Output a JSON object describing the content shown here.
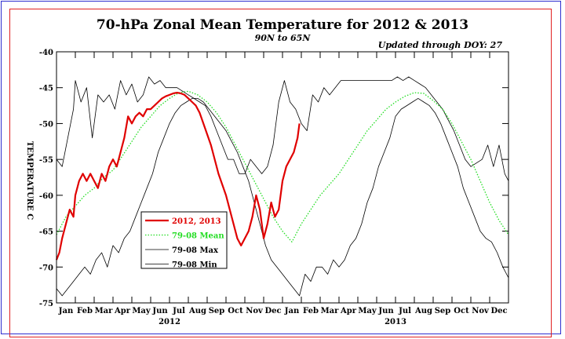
{
  "chart_data": {
    "type": "line",
    "title": "70-hPa Zonal Mean Temperature for 2012 & 2013",
    "subtitle": "90N to 65N",
    "update_note": "Updated through DOY:  27",
    "ylabel": "TEMPERATURE C",
    "ylim": [
      -75,
      -40
    ],
    "yticks": [
      -40,
      -45,
      -50,
      -55,
      -60,
      -65,
      -70,
      -75
    ],
    "xlim": [
      0,
      24
    ],
    "month_labels": [
      "Jan",
      "Feb",
      "Mar",
      "Apr",
      "May",
      "Jun",
      "Jul",
      "Aug",
      "Sep",
      "Oct",
      "Nov",
      "Dec",
      "Jan",
      "Feb",
      "Mar",
      "Apr",
      "May",
      "Jun",
      "Jul",
      "Aug",
      "Sep",
      "Oct",
      "Nov",
      "Dec"
    ],
    "year_labels": [
      {
        "label": "2012",
        "x": 6
      },
      {
        "label": "2013",
        "x": 18
      }
    ],
    "grid": false,
    "legend_position": "lower-left",
    "series": [
      {
        "name": "2012, 2013",
        "color": "#e00000",
        "style": "solid-thick",
        "x": [
          0,
          0.15,
          0.3,
          0.5,
          0.7,
          0.9,
          1.0,
          1.2,
          1.4,
          1.6,
          1.8,
          2.0,
          2.2,
          2.4,
          2.6,
          2.8,
          3.0,
          3.2,
          3.4,
          3.6,
          3.8,
          4.0,
          4.2,
          4.4,
          4.6,
          4.8,
          5.0,
          5.2,
          5.4,
          5.6,
          5.8,
          6.0,
          6.2,
          6.4,
          6.6,
          6.8,
          7.0,
          7.2,
          7.4,
          7.6,
          7.8,
          8.0,
          8.2,
          8.4,
          8.6,
          8.8,
          9.0,
          9.2,
          9.4,
          9.6,
          9.8,
          10.0,
          10.2,
          10.4,
          10.6,
          10.8,
          11.0,
          11.2,
          11.4,
          11.6,
          11.8,
          12.0,
          12.2,
          12.4,
          12.6,
          12.8,
          12.9
        ],
        "y": [
          -69,
          -68,
          -66,
          -64,
          -62,
          -63,
          -60,
          -58,
          -57,
          -58,
          -57,
          -58,
          -59,
          -57,
          -58,
          -56,
          -55,
          -56,
          -54,
          -52,
          -49,
          -50,
          -49,
          -48.5,
          -49,
          -48,
          -48,
          -47.5,
          -47,
          -46.5,
          -46.2,
          -46,
          -45.8,
          -45.7,
          -45.8,
          -46,
          -46.5,
          -47,
          -47.5,
          -48.5,
          -50,
          -51.5,
          -53,
          -55,
          -57,
          -58.5,
          -60,
          -62,
          -64,
          -66,
          -67,
          -66,
          -65,
          -63,
          -60,
          -62,
          -66,
          -64,
          -61,
          -63,
          -62,
          -58,
          -56,
          -55,
          -54,
          -52,
          -50
        ]
      },
      {
        "name": "79-08 Mean",
        "color": "#22dd22",
        "style": "dotted",
        "x": [
          0,
          0.5,
          1,
          1.5,
          2,
          2.5,
          3,
          3.5,
          4,
          4.5,
          5,
          5.5,
          6,
          6.5,
          7,
          7.5,
          8,
          8.5,
          9,
          9.5,
          10,
          10.5,
          11,
          11.5,
          12,
          12.5,
          13,
          13.5,
          14,
          14.5,
          15,
          15.5,
          16,
          16.5,
          17,
          17.5,
          18,
          18.5,
          19,
          19.5,
          20,
          20.5,
          21,
          21.5,
          22,
          22.5,
          23,
          23.5,
          24
        ],
        "y": [
          -65.5,
          -63,
          -61.5,
          -60,
          -59,
          -57.5,
          -56.5,
          -54.5,
          -52.5,
          -50.5,
          -49,
          -47.5,
          -46.5,
          -45.7,
          -45.5,
          -46,
          -47,
          -48.5,
          -50.5,
          -53,
          -55.5,
          -58,
          -60.5,
          -63,
          -65,
          -66.5,
          -64,
          -62,
          -60,
          -58.5,
          -57,
          -55,
          -53,
          -51,
          -49.5,
          -48,
          -47,
          -46.2,
          -45.7,
          -45.8,
          -46.8,
          -48,
          -50,
          -52.5,
          -55,
          -58,
          -61,
          -63.5,
          -65.5
        ]
      },
      {
        "name": "79-08 Max",
        "color": "#000000",
        "style": "thin",
        "x": [
          0,
          0.3,
          0.6,
          0.9,
          1.0,
          1.3,
          1.6,
          1.9,
          2.2,
          2.5,
          2.8,
          3.1,
          3.4,
          3.7,
          4.0,
          4.3,
          4.6,
          4.9,
          5.2,
          5.5,
          5.8,
          6.1,
          6.4,
          6.7,
          7.0,
          7.3,
          7.6,
          7.9,
          8.2,
          8.5,
          8.8,
          9.1,
          9.4,
          9.7,
          10.0,
          10.3,
          10.6,
          10.9,
          11.2,
          11.5,
          11.8,
          12.1,
          12.4,
          12.7,
          13.0,
          13.3,
          13.6,
          13.9,
          14.2,
          14.5,
          14.8,
          15.1,
          15.4,
          15.7,
          16.0,
          16.3,
          16.6,
          16.9,
          17.2,
          17.5,
          17.8,
          18.1,
          18.4,
          18.7,
          19.0,
          19.3,
          19.6,
          19.9,
          20.2,
          20.5,
          20.8,
          21.1,
          21.4,
          21.7,
          22.0,
          22.3,
          22.6,
          22.9,
          23.2,
          23.5,
          23.8,
          24
        ],
        "y": [
          -55,
          -56,
          -52,
          -48,
          -44,
          -47,
          -45,
          -52,
          -46,
          -47,
          -46,
          -48,
          -44,
          -46,
          -44.5,
          -47,
          -46,
          -43.5,
          -44.5,
          -44,
          -45,
          -45,
          -45,
          -45.5,
          -46,
          -46.5,
          -47,
          -47.5,
          -49,
          -51,
          -53,
          -55,
          -55,
          -57,
          -57,
          -55,
          -56,
          -57,
          -56,
          -53,
          -47,
          -44,
          -47,
          -48,
          -50,
          -51,
          -46,
          -47,
          -45,
          -46,
          -45,
          -44,
          -44,
          -44,
          -44,
          -44,
          -44,
          -44,
          -44,
          -44,
          -44,
          -43.5,
          -44,
          -43.5,
          -44,
          -44.5,
          -45,
          -46,
          -47,
          -48,
          -49.5,
          -51,
          -53,
          -55,
          -56,
          -55.5,
          -55,
          -53,
          -56,
          -53,
          -57,
          -58
        ]
      },
      {
        "name": "79-08 Min",
        "color": "#000000",
        "style": "thin",
        "x": [
          0,
          0.3,
          0.6,
          0.9,
          1.2,
          1.5,
          1.8,
          2.1,
          2.4,
          2.7,
          3.0,
          3.3,
          3.6,
          3.9,
          4.2,
          4.5,
          4.8,
          5.1,
          5.4,
          5.7,
          6.0,
          6.3,
          6.6,
          6.9,
          7.2,
          7.5,
          7.8,
          8.1,
          8.4,
          8.7,
          9.0,
          9.3,
          9.6,
          9.9,
          10.2,
          10.5,
          10.8,
          11.1,
          11.4,
          11.7,
          12.0,
          12.3,
          12.6,
          12.9,
          13.2,
          13.5,
          13.8,
          14.1,
          14.4,
          14.7,
          15.0,
          15.3,
          15.6,
          15.9,
          16.2,
          16.5,
          16.8,
          17.1,
          17.4,
          17.7,
          18.0,
          18.3,
          18.6,
          18.9,
          19.2,
          19.5,
          19.8,
          20.1,
          20.4,
          20.7,
          21.0,
          21.3,
          21.6,
          21.9,
          22.2,
          22.5,
          22.8,
          23.1,
          23.4,
          23.7,
          24
        ],
        "y": [
          -73,
          -74,
          -73,
          -72,
          -71,
          -70,
          -71,
          -69,
          -68,
          -70,
          -67,
          -68,
          -66,
          -65,
          -63,
          -61,
          -59,
          -57,
          -54,
          -52,
          -50,
          -48.5,
          -47.5,
          -47,
          -46.5,
          -46.5,
          -47,
          -48,
          -49,
          -50,
          -51,
          -52.5,
          -54,
          -56,
          -58,
          -61,
          -64,
          -67,
          -69,
          -70,
          -71,
          -72,
          -73,
          -74,
          -71,
          -72,
          -70,
          -70,
          -71,
          -69,
          -70,
          -69,
          -67,
          -66,
          -64,
          -61,
          -59,
          -56,
          -54,
          -52,
          -49,
          -48,
          -47.5,
          -47,
          -46.5,
          -47,
          -47.5,
          -48.5,
          -50,
          -52,
          -54,
          -56,
          -59,
          -61,
          -63,
          -65,
          -66,
          -66.5,
          -68,
          -70,
          -71.5
        ]
      }
    ]
  }
}
